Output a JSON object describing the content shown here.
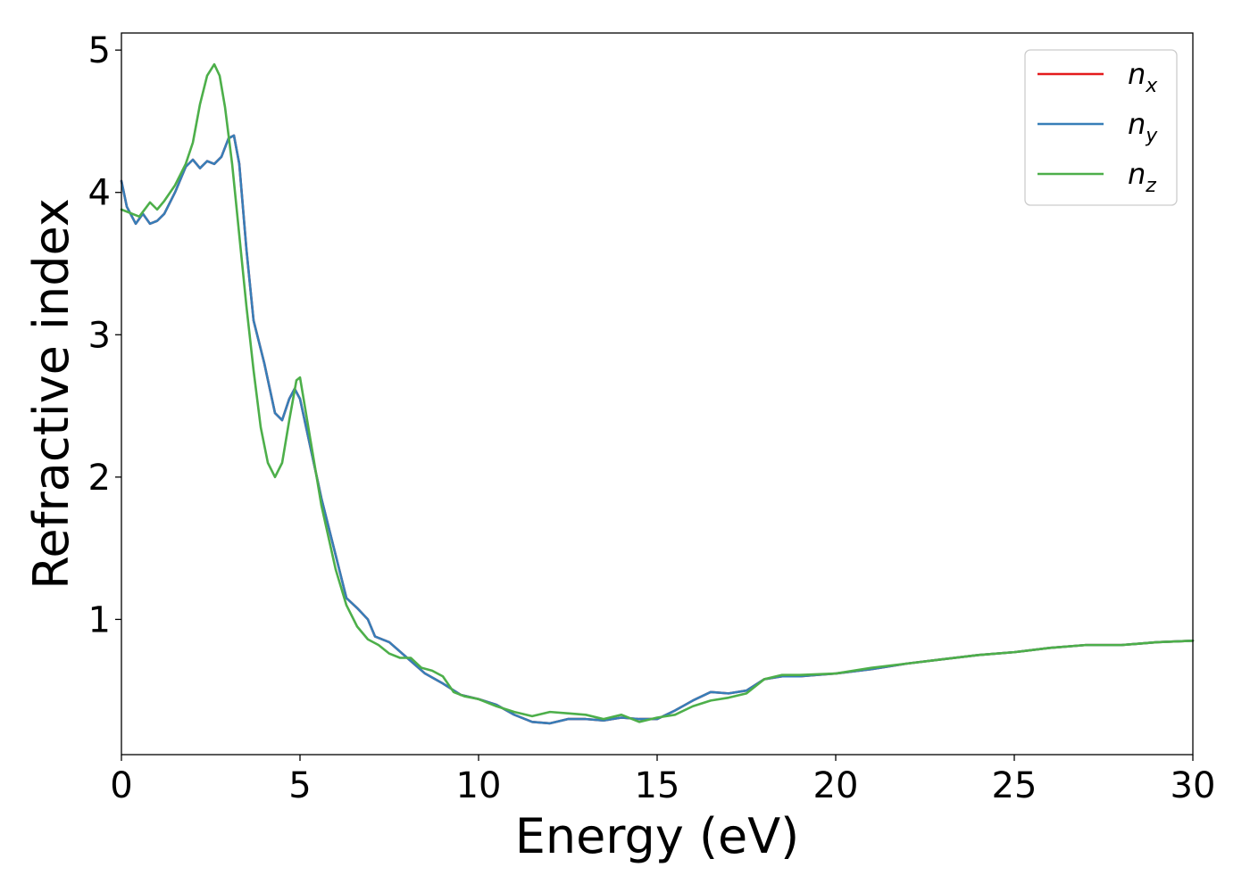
{
  "chart_data": {
    "type": "line",
    "title": "",
    "xlabel": "Energy (eV)",
    "ylabel": "Refractive index",
    "xlim": [
      0,
      30
    ],
    "ylim": [
      0.05,
      5.12
    ],
    "xticks": [
      0,
      5,
      10,
      15,
      20,
      25,
      30
    ],
    "yticks": [
      1,
      2,
      3,
      4,
      5
    ],
    "grid": false,
    "legend_position": "top-right",
    "series": [
      {
        "name": "n",
        "subscript": "x",
        "color": "#e41a1c",
        "x": [
          0,
          0.15,
          0.4,
          0.6,
          0.8,
          1.0,
          1.2,
          1.5,
          1.8,
          2.0,
          2.2,
          2.4,
          2.6,
          2.8,
          3.0,
          3.15,
          3.3,
          3.5,
          3.7,
          4.0,
          4.3,
          4.5,
          4.7,
          4.85,
          5.0,
          5.3,
          5.6,
          6.0,
          6.3,
          6.6,
          6.9,
          7.1,
          7.5,
          8.0,
          8.5,
          9.0,
          9.5,
          10.0,
          10.5,
          11.0,
          11.5,
          12.0,
          12.5,
          13.0,
          13.5,
          14.0,
          14.5,
          15.0,
          15.5,
          16.0,
          16.5,
          17.0,
          17.5,
          18.0,
          18.5,
          19.0,
          19.5,
          20.0,
          21.0,
          22.0,
          23.0,
          24.0,
          25.0,
          26.0,
          27.0,
          28.0,
          29.0,
          30.0
        ],
        "values": [
          4.08,
          3.9,
          3.78,
          3.85,
          3.78,
          3.8,
          3.85,
          4.0,
          4.18,
          4.23,
          4.17,
          4.22,
          4.2,
          4.25,
          4.38,
          4.4,
          4.2,
          3.6,
          3.1,
          2.8,
          2.45,
          2.4,
          2.55,
          2.62,
          2.55,
          2.2,
          1.85,
          1.45,
          1.15,
          1.08,
          1.0,
          0.88,
          0.84,
          0.73,
          0.62,
          0.55,
          0.47,
          0.44,
          0.4,
          0.33,
          0.28,
          0.27,
          0.3,
          0.3,
          0.29,
          0.31,
          0.3,
          0.3,
          0.36,
          0.43,
          0.49,
          0.48,
          0.5,
          0.58,
          0.6,
          0.6,
          0.61,
          0.62,
          0.65,
          0.69,
          0.72,
          0.75,
          0.77,
          0.8,
          0.82,
          0.82,
          0.84,
          0.85
        ]
      },
      {
        "name": "n",
        "subscript": "y",
        "color": "#377eb8",
        "x": [
          0,
          0.15,
          0.4,
          0.6,
          0.8,
          1.0,
          1.2,
          1.5,
          1.8,
          2.0,
          2.2,
          2.4,
          2.6,
          2.8,
          3.0,
          3.15,
          3.3,
          3.5,
          3.7,
          4.0,
          4.3,
          4.5,
          4.7,
          4.85,
          5.0,
          5.3,
          5.6,
          6.0,
          6.3,
          6.6,
          6.9,
          7.1,
          7.5,
          8.0,
          8.5,
          9.0,
          9.5,
          10.0,
          10.5,
          11.0,
          11.5,
          12.0,
          12.5,
          13.0,
          13.5,
          14.0,
          14.5,
          15.0,
          15.5,
          16.0,
          16.5,
          17.0,
          17.5,
          18.0,
          18.5,
          19.0,
          19.5,
          20.0,
          21.0,
          22.0,
          23.0,
          24.0,
          25.0,
          26.0,
          27.0,
          28.0,
          29.0,
          30.0
        ],
        "values": [
          4.08,
          3.9,
          3.78,
          3.85,
          3.78,
          3.8,
          3.85,
          4.0,
          4.18,
          4.23,
          4.17,
          4.22,
          4.2,
          4.25,
          4.38,
          4.4,
          4.2,
          3.6,
          3.1,
          2.8,
          2.45,
          2.4,
          2.55,
          2.62,
          2.55,
          2.2,
          1.85,
          1.45,
          1.15,
          1.08,
          1.0,
          0.88,
          0.84,
          0.73,
          0.62,
          0.55,
          0.47,
          0.44,
          0.4,
          0.33,
          0.28,
          0.27,
          0.3,
          0.3,
          0.29,
          0.31,
          0.3,
          0.3,
          0.36,
          0.43,
          0.49,
          0.48,
          0.5,
          0.58,
          0.6,
          0.6,
          0.61,
          0.62,
          0.65,
          0.69,
          0.72,
          0.75,
          0.77,
          0.8,
          0.82,
          0.82,
          0.84,
          0.85
        ]
      },
      {
        "name": "n",
        "subscript": "z",
        "color": "#4daf4a",
        "x": [
          0,
          0.2,
          0.5,
          0.8,
          1.0,
          1.2,
          1.5,
          1.8,
          2.0,
          2.2,
          2.4,
          2.6,
          2.75,
          2.9,
          3.1,
          3.3,
          3.5,
          3.7,
          3.9,
          4.1,
          4.3,
          4.5,
          4.7,
          4.9,
          5.0,
          5.3,
          5.6,
          6.0,
          6.3,
          6.6,
          6.9,
          7.2,
          7.5,
          7.8,
          8.1,
          8.4,
          8.7,
          9.0,
          9.3,
          9.6,
          10.0,
          10.5,
          11.0,
          11.5,
          12.0,
          12.5,
          13.0,
          13.5,
          14.0,
          14.5,
          15.0,
          15.5,
          16.0,
          16.5,
          17.0,
          17.5,
          18.0,
          18.5,
          19.0,
          20.0,
          21.0,
          22.0,
          23.0,
          24.0,
          25.0,
          26.0,
          27.0,
          28.0,
          29.0,
          30.0
        ],
        "values": [
          3.88,
          3.86,
          3.83,
          3.93,
          3.88,
          3.94,
          4.05,
          4.2,
          4.35,
          4.62,
          4.82,
          4.9,
          4.82,
          4.6,
          4.2,
          3.7,
          3.2,
          2.75,
          2.35,
          2.1,
          2.0,
          2.1,
          2.4,
          2.68,
          2.7,
          2.25,
          1.8,
          1.35,
          1.1,
          0.95,
          0.86,
          0.82,
          0.76,
          0.73,
          0.73,
          0.66,
          0.64,
          0.6,
          0.49,
          0.46,
          0.44,
          0.39,
          0.35,
          0.32,
          0.35,
          0.34,
          0.33,
          0.3,
          0.33,
          0.28,
          0.31,
          0.33,
          0.39,
          0.43,
          0.45,
          0.48,
          0.58,
          0.61,
          0.61,
          0.62,
          0.66,
          0.69,
          0.72,
          0.75,
          0.77,
          0.8,
          0.82,
          0.82,
          0.84,
          0.85
        ]
      }
    ]
  }
}
